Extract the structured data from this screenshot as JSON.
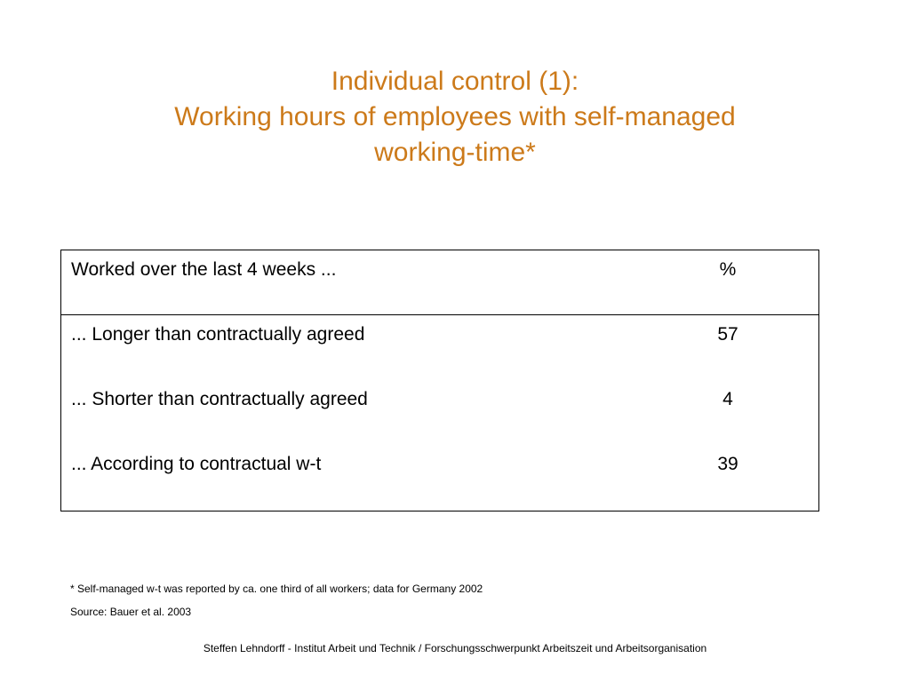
{
  "title": {
    "line1": "Individual control (1):",
    "line2": "Working hours of employees with self-managed",
    "line3": "working-time*"
  },
  "table": {
    "header": {
      "label": "Worked over the last 4 weeks ...",
      "unit": "%"
    },
    "rows": [
      {
        "label": "... Longer than contractually agreed",
        "value": "57"
      },
      {
        "label": "... Shorter than contractually agreed",
        "value": "4"
      },
      {
        "label": "... According to contractual w-t",
        "value": "39"
      }
    ]
  },
  "footnotes": {
    "note": "* Self-managed w-t was reported by ca. one third of all workers; data for Germany 2002",
    "source": "Source: Bauer et al. 2003"
  },
  "footer": "Steffen Lehndorff - Institut Arbeit und Technik / Forschungsschwerpunkt Arbeitszeit und Arbeitsorganisation",
  "colors": {
    "title": "#cc7a1a",
    "text": "#000000",
    "background": "#ffffff"
  }
}
